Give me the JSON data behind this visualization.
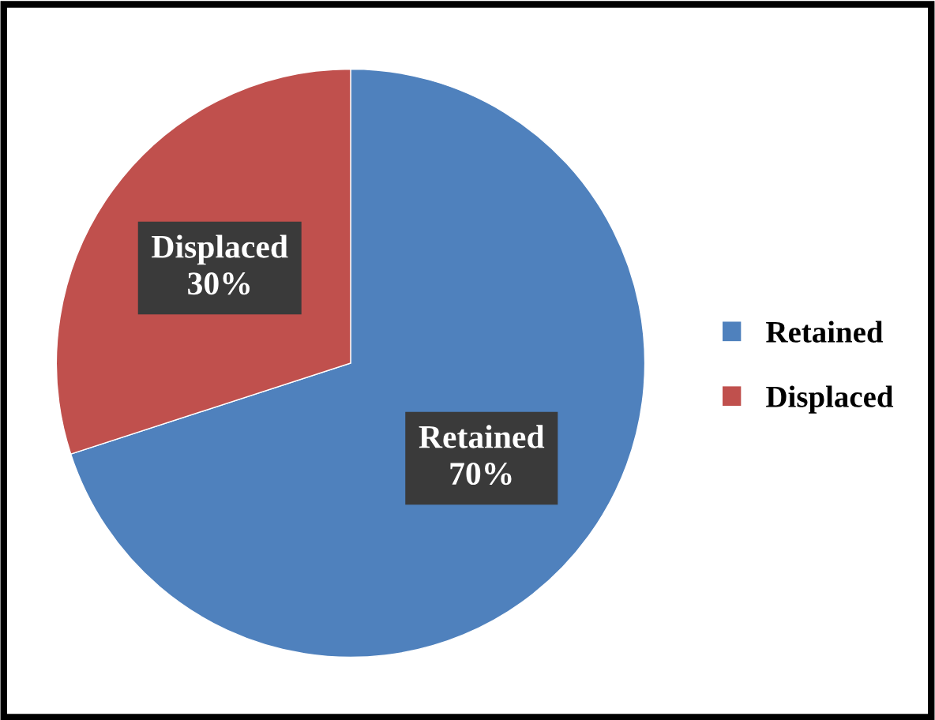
{
  "chart_data": {
    "type": "pie",
    "categories": [
      "Retained",
      "Displaced"
    ],
    "values": [
      70,
      30
    ],
    "colors": [
      "#4f81bd",
      "#c0504d"
    ],
    "value_labels": [
      "70%",
      "30%"
    ],
    "legend": "right"
  }
}
